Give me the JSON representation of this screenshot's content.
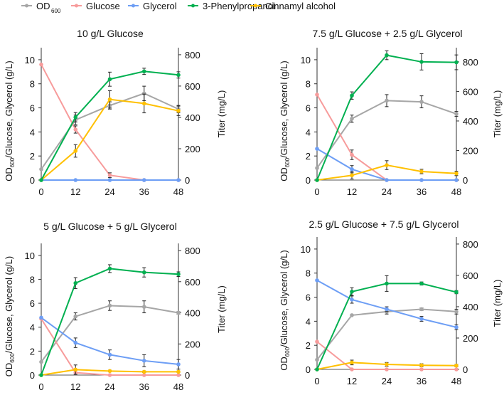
{
  "chart_data": {
    "type": "line",
    "legend": {
      "placement": "top",
      "entries": [
        {
          "key": "od600",
          "label": "OD",
          "sub": "600",
          "color": "#a6a6a6"
        },
        {
          "key": "glucose",
          "label": "Glucose",
          "color": "#f79b9b"
        },
        {
          "key": "glycerol",
          "label": "Glycerol",
          "color": "#6d9ef5"
        },
        {
          "key": "phenylpropanol",
          "label": "3-Phenylpropanol",
          "color": "#00b050"
        },
        {
          "key": "cinnamyl",
          "label": "Cinnamyl alcohol",
          "color": "#ffc000"
        }
      ]
    },
    "x": [
      0,
      12,
      24,
      36,
      48
    ],
    "x_ticks": [
      "0",
      "12",
      "24",
      "36",
      "48"
    ],
    "ylabel_left": {
      "main": "OD",
      "sub": "600",
      "rest": "/Glucose, Glycerol (g/L)"
    },
    "ylabel_right": "Titer (mg/L)",
    "left_ticks": [
      "0",
      "2",
      "4",
      "6",
      "8",
      "10"
    ],
    "right_ticks": [
      "0",
      "200",
      "400",
      "600",
      "800"
    ],
    "panels": [
      {
        "title": "10 g/L Glucose",
        "ylim_left": [
          0,
          11
        ],
        "ylim_right": [
          0,
          845
        ],
        "series": {
          "od600": {
            "axis": "left",
            "values": [
              0.9,
              5.0,
              6.2,
              7.2,
              5.9
            ],
            "err": [
              0,
              0.4,
              0.3,
              0.6,
              0.3
            ]
          },
          "glucose": {
            "axis": "left",
            "values": [
              9.6,
              4.2,
              0.4,
              0,
              0
            ],
            "err": [
              0,
              0.3,
              0.2,
              0,
              0
            ]
          },
          "glycerol": {
            "axis": "left",
            "values": [
              0,
              0,
              0,
              0,
              0
            ],
            "err": [
              0,
              0,
              0,
              0,
              0
            ]
          },
          "phenylpropanol": {
            "axis": "right",
            "values": [
              0,
              401,
              644,
              694,
              671
            ],
            "err": [
              0,
              30,
              45,
              20,
              20
            ]
          },
          "cinnamyl": {
            "axis": "right",
            "values": [
              0,
              186,
              515,
              489,
              442
            ],
            "err": [
              0,
              40,
              55,
              60,
              30
            ]
          }
        }
      },
      {
        "title": "7.5 g/L Glucose + 2.5 g/L Glycerol",
        "ylim_left": [
          0,
          11
        ],
        "ylim_right": [
          0,
          896
        ],
        "series": {
          "od600": {
            "axis": "left",
            "values": [
              1.0,
              5.1,
              6.6,
              6.5,
              5.5
            ],
            "err": [
              0,
              0.3,
              0.5,
              0.5,
              0.2
            ]
          },
          "glucose": {
            "axis": "left",
            "values": [
              7.1,
              2.1,
              0,
              0,
              0
            ],
            "err": [
              0,
              0.4,
              0,
              0,
              0
            ]
          },
          "glycerol": {
            "axis": "left",
            "values": [
              2.6,
              0.9,
              0,
              0,
              0
            ],
            "err": [
              0,
              0.3,
              0,
              0,
              0
            ]
          },
          "phenylpropanol": {
            "axis": "right",
            "values": [
              0,
              572,
              845,
              800,
              797
            ],
            "err": [
              0,
              25,
              30,
              55,
              50
            ]
          },
          "cinnamyl": {
            "axis": "right",
            "values": [
              0,
              32,
              101,
              58,
              45
            ],
            "err": [
              0,
              25,
              30,
              15,
              15
            ]
          }
        }
      },
      {
        "title": "5 g/L Glucose + 5 g/L Glycerol",
        "ylim_left": [
          0,
          11
        ],
        "ylim_right": [
          0,
          846
        ],
        "series": {
          "od600": {
            "axis": "left",
            "values": [
              1.1,
              4.9,
              5.8,
              5.7,
              5.2
            ],
            "err": [
              0,
              0.3,
              0.4,
              0.5,
              0.1
            ]
          },
          "glucose": {
            "axis": "left",
            "values": [
              4.7,
              0.2,
              0,
              0,
              0
            ],
            "err": [
              0,
              0,
              0,
              0,
              0
            ]
          },
          "glycerol": {
            "axis": "left",
            "values": [
              4.8,
              2.7,
              1.7,
              1.2,
              0.9
            ],
            "err": [
              0,
              0.4,
              0.4,
              0.5,
              0.4
            ]
          },
          "phenylpropanol": {
            "axis": "right",
            "values": [
              0,
              591,
              684,
              660,
              648
            ],
            "err": [
              0,
              35,
              25,
              30,
              15
            ]
          },
          "cinnamyl": {
            "axis": "right",
            "values": [
              0,
              35,
              26,
              21,
              21
            ],
            "err": [
              0,
              30,
              5,
              5,
              5
            ]
          }
        }
      },
      {
        "title": "2.5 g/L Glucose + 7.5 g/L Glycerol",
        "ylim_left": [
          0,
          11
        ],
        "ylim_right": [
          0,
          845
        ],
        "series": {
          "od600": {
            "axis": "left",
            "values": [
              0.8,
              4.5,
              4.8,
              5.0,
              4.8
            ],
            "err": [
              0,
              0,
              0.2,
              0.1,
              0.2
            ]
          },
          "glucose": {
            "axis": "left",
            "values": [
              2.3,
              0,
              0,
              0,
              0
            ],
            "err": [
              0,
              0,
              0,
              0,
              0
            ]
          },
          "glycerol": {
            "axis": "left",
            "values": [
              7.4,
              5.8,
              5.0,
              4.2,
              3.5
            ],
            "err": [
              0,
              0.3,
              0.2,
              0.2,
              0.2
            ]
          },
          "phenylpropanol": {
            "axis": "right",
            "values": [
              0,
              496,
              548,
              548,
              493
            ],
            "err": [
              0,
              25,
              50,
              10,
              10
            ]
          },
          "cinnamyl": {
            "axis": "right",
            "values": [
              0,
              44,
              32,
              26,
              24
            ],
            "err": [
              0,
              15,
              12,
              10,
              8
            ]
          }
        }
      }
    ]
  }
}
